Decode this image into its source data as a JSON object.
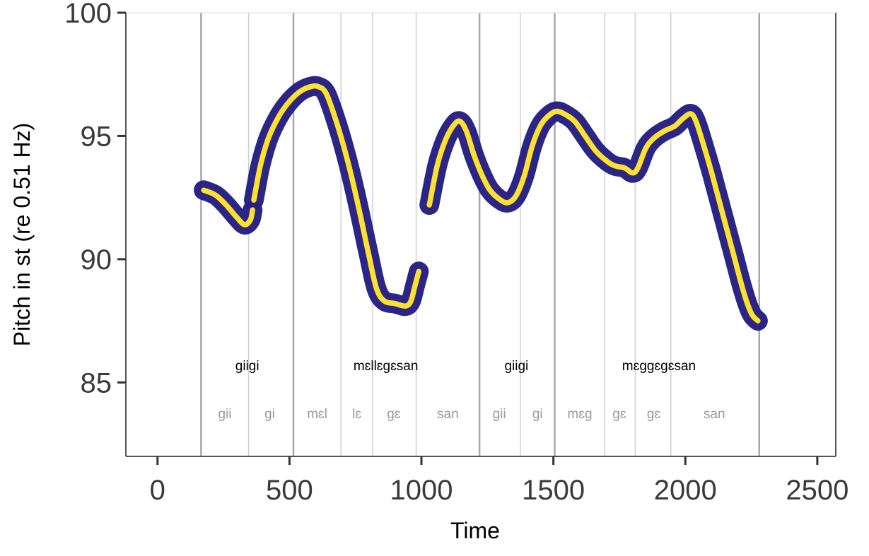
{
  "chart_data": {
    "type": "line",
    "xlabel": "Time",
    "ylabel": "Pitch in st (re 0.51 Hz)",
    "xlim": [
      -120,
      2570
    ],
    "ylim": [
      82.0,
      100.0
    ],
    "x_ticks": [
      0,
      500,
      1000,
      1500,
      2000,
      2500
    ],
    "y_ticks": [
      85,
      90,
      95,
      100
    ],
    "grid": false,
    "colors": {
      "band": "#241f82",
      "line": "#fde130",
      "word_boundary": "#a8a8a8",
      "syllable_boundary": "#cfcfcf",
      "frame": "#555555"
    },
    "word_boundaries": [
      165,
      515,
      1220,
      1505,
      2280
    ],
    "syllable_boundaries": [
      345,
      695,
      815,
      980,
      1375,
      1695,
      1810,
      1945
    ],
    "words": [
      {
        "label": "giigi",
        "x": 340
      },
      {
        "label": "mɛllɛgɛsan",
        "x": 865
      },
      {
        "label": "giigi",
        "x": 1360
      },
      {
        "label": "mɛggɛgɛsan",
        "x": 1900
      }
    ],
    "syllables": [
      {
        "label": "gii",
        "x": 255
      },
      {
        "label": "gi",
        "x": 425
      },
      {
        "label": "mɛl",
        "x": 605
      },
      {
        "label": "lɛ",
        "x": 755
      },
      {
        "label": "gɛ",
        "x": 895
      },
      {
        "label": "san",
        "x": 1100
      },
      {
        "label": "gii",
        "x": 1295
      },
      {
        "label": "gi",
        "x": 1440
      },
      {
        "label": "mɛg",
        "x": 1600
      },
      {
        "label": "gɛ",
        "x": 1750
      },
      {
        "label": "gɛ",
        "x": 1880
      },
      {
        "label": "san",
        "x": 2110
      }
    ],
    "series": [
      {
        "points": [
          [
            175,
            92.8
          ],
          [
            220,
            92.6
          ],
          [
            260,
            92.2
          ],
          [
            300,
            91.7
          ],
          [
            330,
            91.4
          ],
          [
            352,
            91.6
          ],
          [
            360,
            92.0
          ]
        ]
      },
      {
        "points": [
          [
            365,
            92.4
          ],
          [
            390,
            93.8
          ],
          [
            420,
            94.9
          ],
          [
            460,
            95.8
          ],
          [
            500,
            96.4
          ],
          [
            540,
            96.8
          ],
          [
            580,
            97.0
          ],
          [
            610,
            97.0
          ],
          [
            640,
            96.7
          ],
          [
            680,
            95.5
          ],
          [
            720,
            94.0
          ],
          [
            760,
            92.2
          ],
          [
            800,
            90.2
          ],
          [
            830,
            88.8
          ],
          [
            860,
            88.3
          ],
          [
            900,
            88.2
          ],
          [
            940,
            88.1
          ],
          [
            960,
            88.3
          ],
          [
            975,
            88.9
          ],
          [
            990,
            89.5
          ]
        ]
      },
      {
        "points": [
          [
            1030,
            92.2
          ],
          [
            1060,
            93.8
          ],
          [
            1090,
            94.8
          ],
          [
            1120,
            95.4
          ],
          [
            1145,
            95.6
          ],
          [
            1170,
            95.2
          ],
          [
            1200,
            94.2
          ],
          [
            1230,
            93.4
          ],
          [
            1260,
            92.8
          ],
          [
            1300,
            92.4
          ],
          [
            1330,
            92.3
          ],
          [
            1360,
            92.6
          ],
          [
            1390,
            93.4
          ],
          [
            1420,
            94.6
          ],
          [
            1450,
            95.4
          ],
          [
            1480,
            95.8
          ],
          [
            1510,
            96.0
          ],
          [
            1540,
            95.9
          ],
          [
            1580,
            95.6
          ],
          [
            1620,
            95.0
          ],
          [
            1660,
            94.4
          ],
          [
            1700,
            94.0
          ],
          [
            1730,
            93.8
          ],
          [
            1770,
            93.7
          ],
          [
            1800,
            93.5
          ],
          [
            1820,
            93.7
          ],
          [
            1850,
            94.5
          ],
          [
            1880,
            94.9
          ],
          [
            1920,
            95.2
          ],
          [
            1960,
            95.4
          ],
          [
            1990,
            95.7
          ],
          [
            2020,
            95.9
          ],
          [
            2040,
            95.6
          ],
          [
            2070,
            94.6
          ],
          [
            2100,
            93.5
          ],
          [
            2140,
            91.9
          ],
          [
            2180,
            90.3
          ],
          [
            2220,
            88.7
          ],
          [
            2250,
            87.8
          ],
          [
            2275,
            87.5
          ]
        ]
      }
    ]
  }
}
